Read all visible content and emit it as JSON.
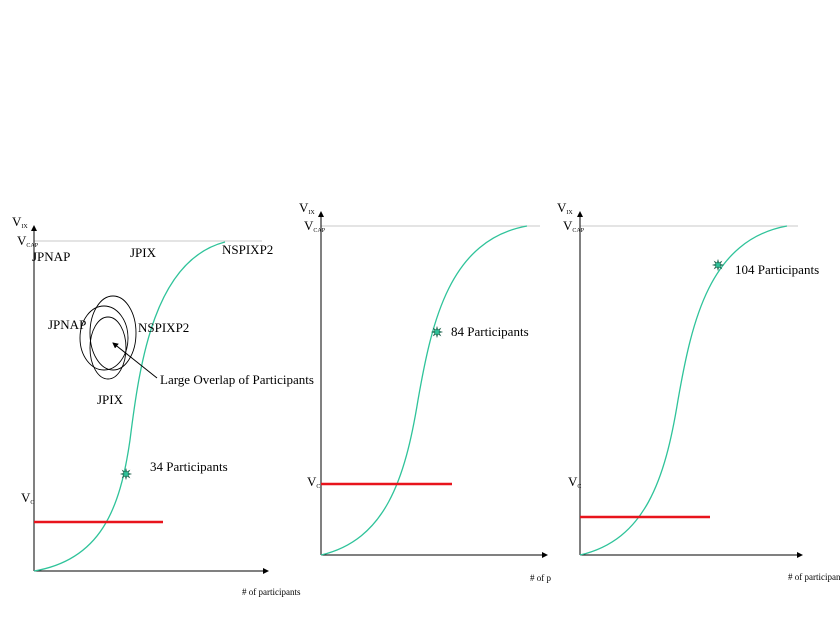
{
  "colors": {
    "curve": "#2fc39a",
    "threshold": "#e8141c",
    "marker": "#2fc39a"
  },
  "panel1": {
    "y_axis": {
      "v": "V",
      "ix_sub": "IX",
      "cap_sub": "CAP"
    },
    "vc": {
      "v": "V",
      "sub": "C"
    },
    "x_label": "# of participants",
    "top_labels": [
      "JPNAP",
      "JPIX",
      "NSPIXP2"
    ],
    "venn_labels": [
      "JPNAP",
      "NSPIXP2",
      "JPIX"
    ],
    "overlap_label": "Large Overlap of Participants",
    "point_label": "34 Participants",
    "point": {
      "value": 34
    }
  },
  "panel2": {
    "y_axis": {
      "v": "V",
      "ix_sub": "IX",
      "cap_sub": "CAP"
    },
    "vc": {
      "v": "V",
      "sub": "C"
    },
    "x_label": "# of p",
    "point_label": "84 Participants",
    "point": {
      "value": 84
    }
  },
  "panel3": {
    "y_axis": {
      "v": "V",
      "ix_sub": "IX",
      "cap_sub": "CAP"
    },
    "vc": {
      "v": "V",
      "sub": "C"
    },
    "x_label": "# of participants",
    "point_label": "104 Participants",
    "point": {
      "value": 104
    }
  }
}
